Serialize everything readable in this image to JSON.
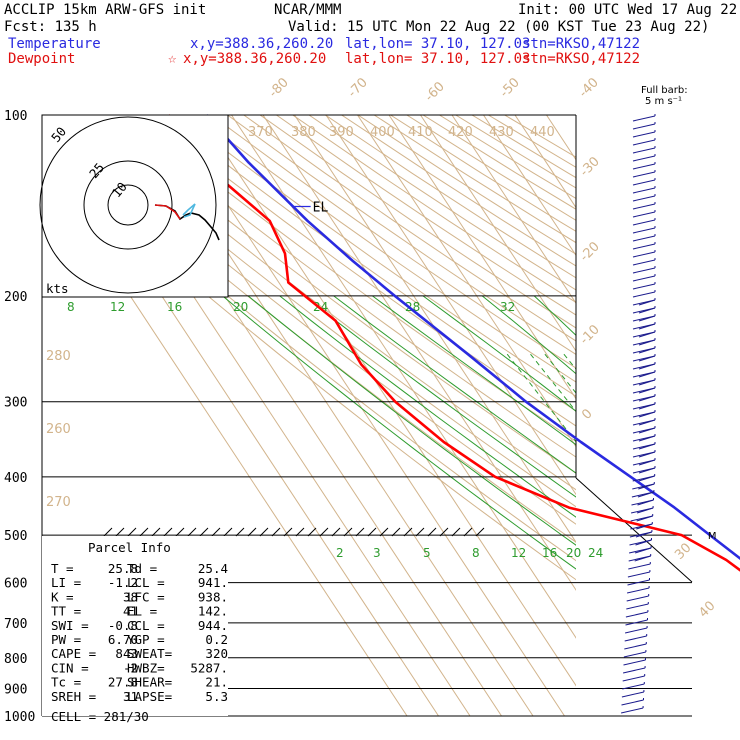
{
  "header": {
    "model": "ACCLIP 15km ARW-GFS init",
    "org": "NCAR/MMM",
    "init": "Init: 00 UTC Wed 17 Aug 22",
    "fcst": "Fcst:  135 h",
    "valid": "Valid: 15 UTC Mon 22 Aug 22 (00 KST Tue 23 Aug 22)",
    "temp_label": "Temperature",
    "temp_xy": "x,y=388.36,260.20",
    "temp_latlon": "lat,lon= 37.10, 127.03",
    "temp_stn": "stn=RKSO,47122",
    "dew_label": "Dewpoint",
    "dew_marker": "☆",
    "dew_xy": "x,y=388.36,260.20",
    "dew_latlon": "lat,lon= 37.10, 127.03",
    "dew_stn": "stn=RKSO,47122"
  },
  "colors": {
    "temperature": "#ff0000",
    "dewpoint": "#2a2ae0",
    "isotherm": "#d2b48c",
    "mixing_ratio": "#2e9c2e",
    "barb": "#1a1a8c",
    "hodo_marker": "#4fb8e0"
  },
  "chart_data": {
    "type": "line",
    "title": "",
    "ylabel": "",
    "pressure_ticks": [
      "100",
      "200",
      "300",
      "400",
      "500",
      "600",
      "700",
      "800",
      "900",
      "1000"
    ],
    "ylim": [
      1000,
      100
    ],
    "isotherm_labels": [
      "-80",
      "-70",
      "-60",
      "-50",
      "-40",
      "-30",
      "-20",
      "-10",
      "0",
      "30",
      "40"
    ],
    "theta_labels": [
      "370",
      "380",
      "390",
      "400",
      "410",
      "420",
      "430",
      "440",
      "280",
      "260",
      "270"
    ],
    "mixing_ratio_upper_labels": [
      "8",
      "12",
      "16",
      "20",
      "24",
      "28",
      "32"
    ],
    "mixing_ratio_lower_labels": [
      "2",
      "3",
      "5",
      "8",
      "12",
      "16",
      "20",
      "24"
    ],
    "series": [
      {
        "name": "Temperature",
        "points": [
          {
            "p": 100,
            "t": -78.0
          },
          {
            "p": 120,
            "t": -74.5
          },
          {
            "p": 150,
            "t": -68.0
          },
          {
            "p": 175,
            "t": -62.0
          },
          {
            "p": 200,
            "t": -56.0
          },
          {
            "p": 250,
            "t": -45.0
          },
          {
            "p": 300,
            "t": -36.5
          },
          {
            "p": 350,
            "t": -27.5
          },
          {
            "p": 400,
            "t": -19.0
          },
          {
            "p": 450,
            "t": -11.5
          },
          {
            "p": 500,
            "t": -6.0
          },
          {
            "p": 550,
            "t": -1.0
          },
          {
            "p": 600,
            "t": 3.5
          },
          {
            "p": 650,
            "t": 7.5
          },
          {
            "p": 700,
            "t": 10.5
          },
          {
            "p": 750,
            "t": 14.0
          },
          {
            "p": 800,
            "t": 17.5
          },
          {
            "p": 850,
            "t": 20.5
          },
          {
            "p": 900,
            "t": 23.0
          },
          {
            "p": 960,
            "t": 25.2
          }
        ]
      },
      {
        "name": "Dewpoint",
        "points": [
          {
            "p": 100,
            "t": -90.0
          },
          {
            "p": 130,
            "t": -86.0
          },
          {
            "p": 150,
            "t": -80.0
          },
          {
            "p": 170,
            "t": -82.0
          },
          {
            "p": 190,
            "t": -87.0
          },
          {
            "p": 220,
            "t": -80.0
          },
          {
            "p": 260,
            "t": -81.0
          },
          {
            "p": 300,
            "t": -78.0
          },
          {
            "p": 350,
            "t": -71.0
          },
          {
            "p": 400,
            "t": -62.0
          },
          {
            "p": 450,
            "t": -45.0
          },
          {
            "p": 500,
            "t": -15.0
          },
          {
            "p": 550,
            "t": -6.0
          },
          {
            "p": 600,
            "t": -1.0
          },
          {
            "p": 650,
            "t": 3.0
          },
          {
            "p": 700,
            "t": 7.5
          },
          {
            "p": 750,
            "t": 12.0
          },
          {
            "p": 800,
            "t": 15.5
          },
          {
            "p": 850,
            "t": 19.0
          },
          {
            "p": 900,
            "t": 22.0
          },
          {
            "p": 960,
            "t": 24.8
          }
        ]
      }
    ],
    "levels": [
      {
        "label": "EL",
        "p": 142
      },
      {
        "label": "M",
        "p": 500
      },
      {
        "label": "CCL",
        "p": 944
      },
      {
        "label": "LCL",
        "p": 941
      },
      {
        "label": "LFC",
        "p": 938
      }
    ]
  },
  "hodograph": {
    "ring_labels": [
      "50",
      "25",
      "10"
    ],
    "units": "kts"
  },
  "barbs": {
    "label": "Full barb:",
    "unit": "5 m s⁻¹"
  },
  "parcel_info": {
    "title": "Parcel Info",
    "rows": [
      [
        "T  =",
        "25.8",
        "Td =",
        "25.4"
      ],
      [
        "LI =",
        "-1.2",
        "LCL =",
        "941."
      ],
      [
        "K  =",
        "38",
        "LFC =",
        "938."
      ],
      [
        "TT =",
        "41",
        "EL  =",
        "142."
      ],
      [
        "SWI =",
        "-0.8",
        "CCL =",
        "944."
      ],
      [
        "PW =",
        "6.70",
        "YGP =",
        "0.2"
      ],
      [
        "CAPE =",
        "843",
        "SWEAT=",
        "320"
      ],
      [
        "CIN =",
        "-2",
        "HWBZ=",
        "5287."
      ],
      [
        "Tc =",
        "27.8",
        "SHEAR=",
        "21."
      ],
      [
        "SREH =",
        "31",
        "LAPSE=",
        "5.3"
      ]
    ],
    "cell": "CELL = 281/30"
  }
}
